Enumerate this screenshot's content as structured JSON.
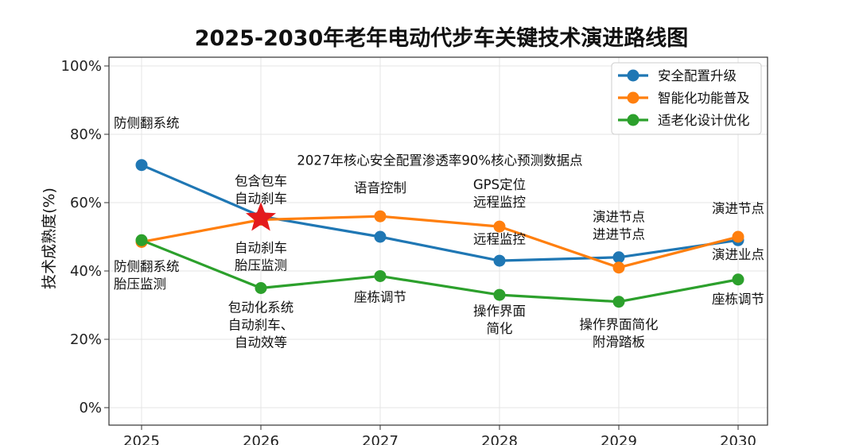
{
  "chart_data": {
    "type": "line",
    "title": "2025-2030年老年电动代步车关键技术演进路线图",
    "xlabel": "",
    "ylabel_chars": [
      "技",
      "术",
      "成",
      "熟",
      "度",
      "(%)"
    ],
    "x": [
      "2025",
      "2026",
      "2027",
      "2028",
      "2029",
      "2030"
    ],
    "ylim": [
      0,
      100
    ],
    "yticks": [
      0,
      20,
      40,
      60,
      80,
      100
    ],
    "ytick_labels": [
      "0%",
      "20%",
      "40%",
      "60%",
      "80%",
      "100%"
    ],
    "grid": true,
    "legend_position": "top-right",
    "series": [
      {
        "name": "安全配置升级",
        "color": "#1f77b4",
        "values": [
          71,
          56,
          50,
          43,
          44,
          49
        ]
      },
      {
        "name": "智能化功能普及",
        "color": "#ff7f0e",
        "values": [
          48.5,
          55,
          56,
          53,
          41,
          50
        ]
      },
      {
        "name": "适老化设计优化",
        "color": "#2ca02c",
        "values": [
          49,
          35,
          38.5,
          33,
          31,
          37.5
        ]
      }
    ],
    "highlight": {
      "x": "2026",
      "y": 55.5,
      "marker": "star",
      "color": "#e41a1c"
    },
    "annotations": [
      {
        "lines": [
          "防侧翻系统"
        ],
        "x": "2025",
        "y": 82,
        "align": "left"
      },
      {
        "lines": [
          "防侧翻系统",
          "胎压监测"
        ],
        "x": "2025",
        "y": 40,
        "align": "left"
      },
      {
        "lines": [
          "包含包车",
          "自动刹车"
        ],
        "x": "2026",
        "y": 65,
        "align": "center"
      },
      {
        "lines": [
          "自动刹车",
          "胎压监测"
        ],
        "x": "2026",
        "y": 45.5,
        "align": "center"
      },
      {
        "lines": [
          "包动化系统",
          "自动刹车、",
          "自动效等"
        ],
        "x": "2026",
        "y": 28,
        "align": "center"
      },
      {
        "lines": [
          "2027年核心安全配置渗透率90%核心预测数据点"
        ],
        "x": "2027",
        "y": 71,
        "align": "center",
        "offset_years": 0.5
      },
      {
        "lines": [
          "语音控制"
        ],
        "x": "2027",
        "y": 63,
        "align": "center"
      },
      {
        "lines": [
          "座栋调节"
        ],
        "x": "2027",
        "y": 31,
        "align": "center"
      },
      {
        "lines": [
          "GPS定位",
          "远程监控"
        ],
        "x": "2028",
        "y": 64,
        "align": "center"
      },
      {
        "lines": [
          "远程监控"
        ],
        "x": "2028",
        "y": 48,
        "align": "center"
      },
      {
        "lines": [
          "操作界面",
          "简化"
        ],
        "x": "2028",
        "y": 27,
        "align": "center"
      },
      {
        "lines": [
          "演进节点",
          "进进节点"
        ],
        "x": "2029",
        "y": 54.5,
        "align": "center"
      },
      {
        "lines": [
          "操作界面简化",
          "附滑踏板"
        ],
        "x": "2029",
        "y": 23,
        "align": "center"
      },
      {
        "lines": [
          "演进节点"
        ],
        "x": "2030",
        "y": 57,
        "align": "center"
      },
      {
        "lines": [
          "演进业点"
        ],
        "x": "2030",
        "y": 43.5,
        "align": "center"
      },
      {
        "lines": [
          "座栋调节"
        ],
        "x": "2030",
        "y": 30.5,
        "align": "center"
      }
    ]
  }
}
